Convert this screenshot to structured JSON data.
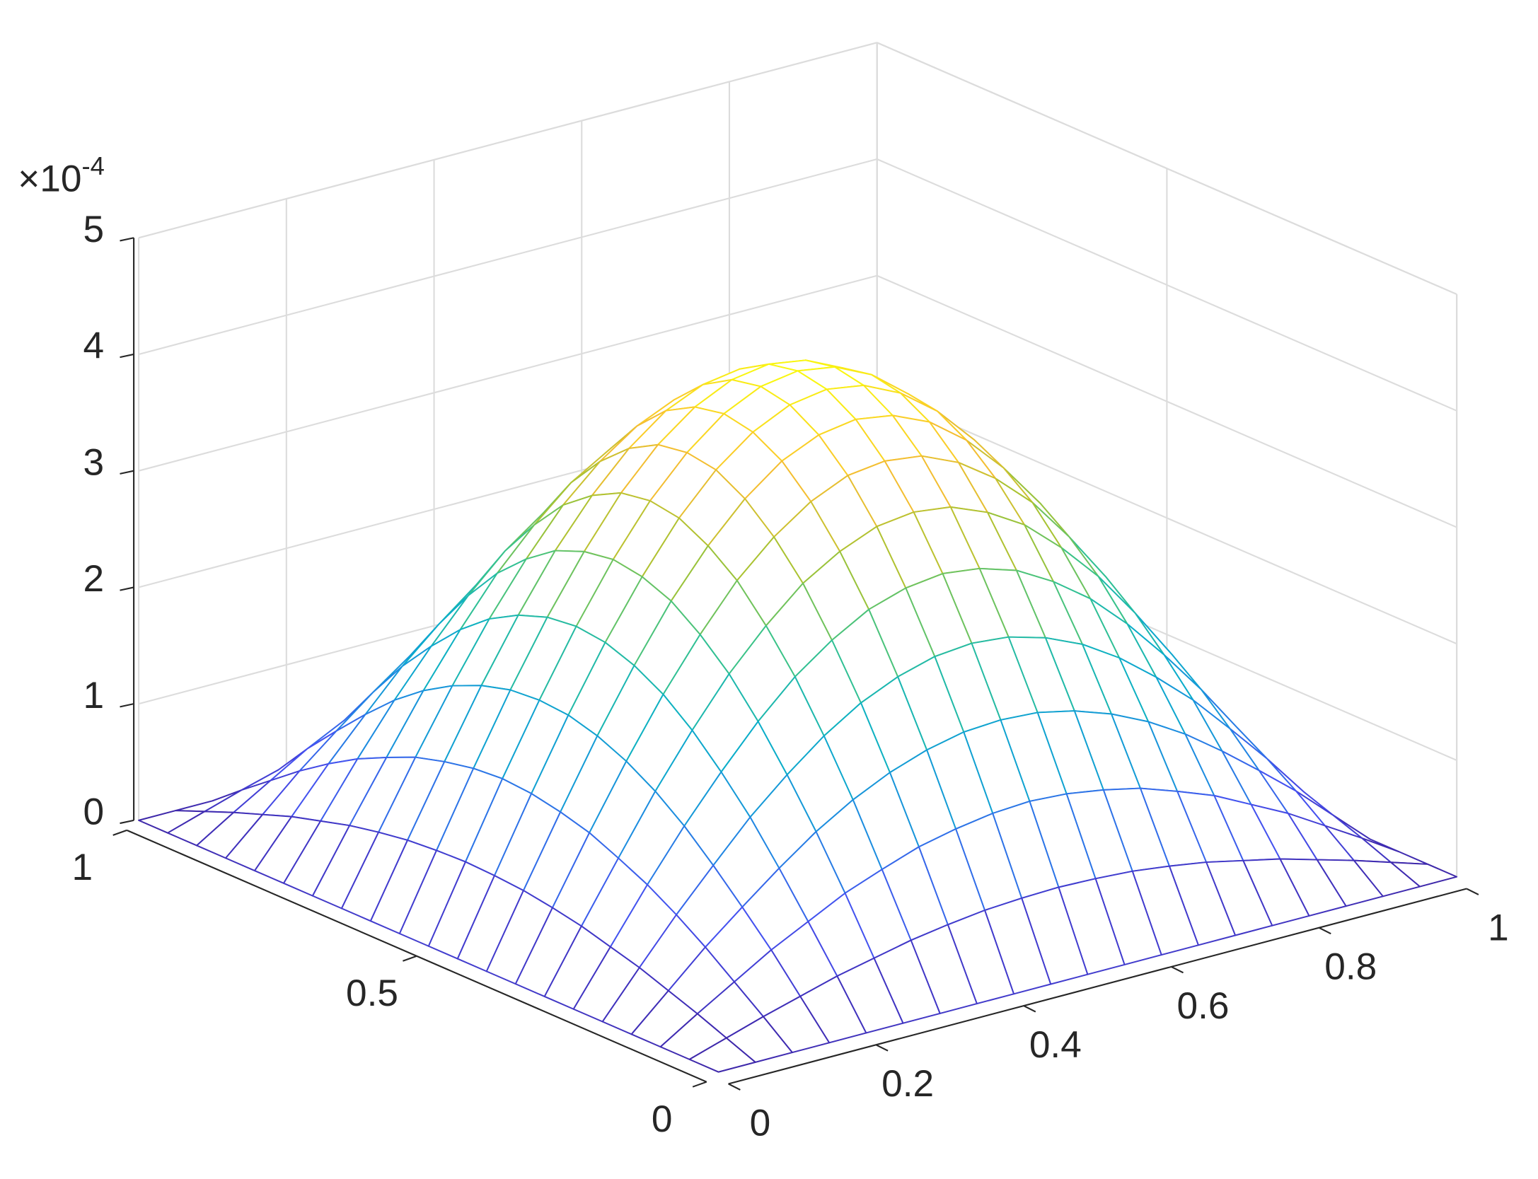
{
  "chart_data": {
    "type": "mesh",
    "x": [
      0,
      0.05,
      0.1,
      0.15,
      0.2,
      0.25,
      0.3,
      0.35,
      0.4,
      0.45,
      0.5,
      0.55,
      0.6,
      0.65,
      0.7,
      0.75,
      0.8,
      0.85,
      0.9,
      0.95,
      1
    ],
    "y": [
      0,
      0.05,
      0.1,
      0.15,
      0.2,
      0.25,
      0.3,
      0.35,
      0.4,
      0.45,
      0.5,
      0.55,
      0.6,
      0.65,
      0.7,
      0.75,
      0.8,
      0.85,
      0.9,
      0.95,
      1
    ],
    "z": [
      [
        0,
        0,
        0,
        0,
        0,
        0,
        0,
        0,
        0,
        0,
        0,
        0,
        0,
        0,
        0,
        0,
        0,
        0,
        0,
        0,
        0
      ],
      [
        0,
        0.1,
        0.2,
        0.29,
        0.38,
        0.45,
        0.52,
        0.57,
        0.61,
        0.63,
        0.64,
        0.63,
        0.61,
        0.57,
        0.52,
        0.45,
        0.38,
        0.29,
        0.2,
        0.1,
        0
      ],
      [
        0,
        0.2,
        0.39,
        0.58,
        0.74,
        0.9,
        1.02,
        1.13,
        1.2,
        1.25,
        1.27,
        1.25,
        1.2,
        1.13,
        1.02,
        0.9,
        0.74,
        0.58,
        0.39,
        0.2,
        0
      ],
      [
        0,
        0.29,
        0.58,
        0.84,
        1.09,
        1.32,
        1.51,
        1.66,
        1.77,
        1.84,
        1.86,
        1.84,
        1.77,
        1.66,
        1.51,
        1.32,
        1.09,
        0.84,
        0.58,
        0.29,
        0
      ],
      [
        0,
        0.38,
        0.75,
        1.09,
        1.42,
        1.7,
        1.95,
        2.15,
        2.29,
        2.38,
        2.41,
        2.38,
        2.29,
        2.15,
        1.95,
        1.7,
        1.42,
        1.09,
        0.75,
        0.38,
        0
      ],
      [
        0,
        0.45,
        0.9,
        1.32,
        1.7,
        2.05,
        2.35,
        2.58,
        2.76,
        2.86,
        2.9,
        2.86,
        2.76,
        2.58,
        2.35,
        2.05,
        1.7,
        1.32,
        0.9,
        0.45,
        0
      ],
      [
        0,
        0.52,
        1.02,
        1.51,
        1.95,
        2.35,
        2.68,
        2.96,
        3.15,
        3.28,
        3.32,
        3.28,
        3.15,
        2.96,
        2.68,
        2.35,
        1.95,
        1.51,
        1.02,
        0.52,
        0
      ],
      [
        0,
        0.57,
        1.13,
        1.66,
        2.15,
        2.58,
        2.96,
        3.25,
        3.47,
        3.61,
        3.65,
        3.61,
        3.47,
        3.25,
        2.96,
        2.58,
        2.15,
        1.66,
        1.13,
        0.57,
        0
      ],
      [
        0,
        0.61,
        1.2,
        1.77,
        2.29,
        2.76,
        3.15,
        3.47,
        3.71,
        3.85,
        3.9,
        3.85,
        3.71,
        3.47,
        3.15,
        2.76,
        2.29,
        1.77,
        1.2,
        0.61,
        0
      ],
      [
        0,
        0.63,
        1.25,
        1.84,
        2.38,
        2.86,
        3.28,
        3.61,
        3.85,
        4.0,
        4.05,
        4.0,
        3.85,
        3.61,
        3.28,
        2.86,
        2.38,
        1.84,
        1.25,
        0.63,
        0
      ],
      [
        0,
        0.64,
        1.27,
        1.86,
        2.41,
        2.9,
        3.32,
        3.65,
        3.9,
        4.05,
        4.1,
        4.05,
        3.9,
        3.65,
        3.32,
        2.9,
        2.41,
        1.86,
        1.27,
        0.64,
        0
      ],
      [
        0,
        0.63,
        1.25,
        1.84,
        2.38,
        2.86,
        3.28,
        3.61,
        3.85,
        4.0,
        4.05,
        4.0,
        3.85,
        3.61,
        3.28,
        2.86,
        2.38,
        1.84,
        1.25,
        0.63,
        0
      ],
      [
        0,
        0.61,
        1.2,
        1.77,
        2.29,
        2.76,
        3.15,
        3.47,
        3.71,
        3.85,
        3.9,
        3.85,
        3.71,
        3.47,
        3.15,
        2.76,
        2.29,
        1.77,
        1.2,
        0.61,
        0
      ],
      [
        0,
        0.57,
        1.13,
        1.66,
        2.15,
        2.58,
        2.96,
        3.25,
        3.47,
        3.61,
        3.65,
        3.61,
        3.47,
        3.25,
        2.96,
        2.58,
        2.15,
        1.66,
        1.13,
        0.57,
        0
      ],
      [
        0,
        0.52,
        1.02,
        1.51,
        1.95,
        2.35,
        2.68,
        2.96,
        3.15,
        3.28,
        3.32,
        3.28,
        3.15,
        2.96,
        2.68,
        2.35,
        1.95,
        1.51,
        1.02,
        0.52,
        0
      ],
      [
        0,
        0.45,
        0.9,
        1.32,
        1.7,
        2.05,
        2.35,
        2.58,
        2.76,
        2.86,
        2.9,
        2.86,
        2.76,
        2.58,
        2.35,
        2.05,
        1.7,
        1.32,
        0.9,
        0.45,
        0
      ],
      [
        0,
        0.38,
        0.75,
        1.09,
        1.42,
        1.7,
        1.95,
        2.15,
        2.29,
        2.38,
        2.41,
        2.38,
        2.29,
        2.15,
        1.95,
        1.7,
        1.42,
        1.09,
        0.75,
        0.38,
        0
      ],
      [
        0,
        0.29,
        0.58,
        0.84,
        1.09,
        1.32,
        1.51,
        1.66,
        1.77,
        1.84,
        1.86,
        1.84,
        1.77,
        1.66,
        1.51,
        1.32,
        1.09,
        0.84,
        0.58,
        0.29,
        0
      ],
      [
        0,
        0.2,
        0.39,
        0.58,
        0.74,
        0.9,
        1.02,
        1.13,
        1.2,
        1.25,
        1.27,
        1.25,
        1.2,
        1.13,
        1.02,
        0.9,
        0.74,
        0.58,
        0.39,
        0.2,
        0
      ],
      [
        0,
        0.1,
        0.2,
        0.29,
        0.38,
        0.45,
        0.52,
        0.57,
        0.61,
        0.63,
        0.64,
        0.63,
        0.61,
        0.57,
        0.52,
        0.45,
        0.38,
        0.29,
        0.2,
        0.1,
        0
      ],
      [
        0,
        0,
        0,
        0,
        0,
        0,
        0,
        0,
        0,
        0,
        0,
        0,
        0,
        0,
        0,
        0,
        0,
        0,
        0,
        0,
        0
      ]
    ],
    "xlim": [
      0,
      1
    ],
    "xticks": [
      0,
      0.2,
      0.4,
      0.6,
      0.8,
      1
    ],
    "ylim": [
      0,
      1
    ],
    "yticks": [
      0,
      0.5,
      1
    ],
    "zlim": [
      0,
      5
    ],
    "zticks": [
      0,
      1,
      2,
      3,
      4,
      5
    ],
    "z_multiplier": {
      "base": "×10",
      "exponent": "-4"
    },
    "grid": true,
    "colormap": [
      "#3e26a8",
      "#4650f0",
      "#1e8ce1",
      "#0aafc8",
      "#37c38c",
      "#a5c332",
      "#fabe32",
      "#f9fb0e"
    ]
  }
}
